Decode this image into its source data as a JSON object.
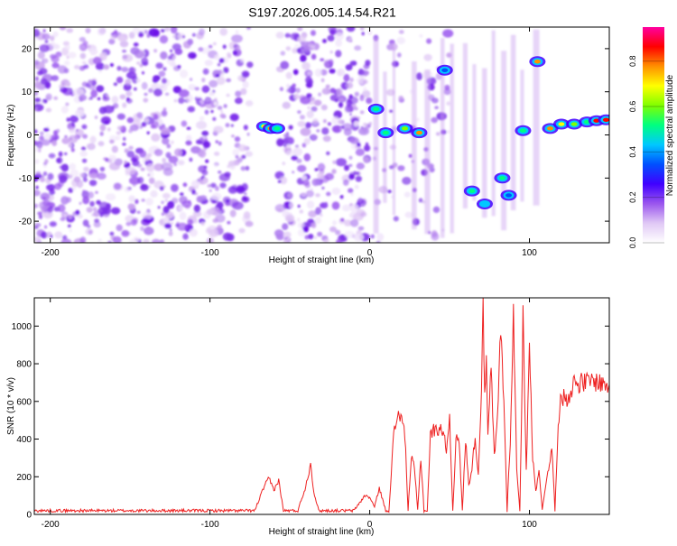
{
  "page": {
    "title": "S197.2026.005.14.54.R21"
  },
  "chart_data": [
    {
      "type": "heatmap",
      "xlabel": "Height of straight line (km)",
      "ylabel": "Frequency (Hz)",
      "xlim": [
        -210,
        150
      ],
      "ylim": [
        -25,
        25
      ],
      "xticks": [
        -200,
        -100,
        0,
        100
      ],
      "yticks": [
        -20,
        -10,
        0,
        10,
        20
      ],
      "colorbar": {
        "label": "Normalized spectral amplitude",
        "range": [
          0.0,
          0.95
        ],
        "ticks": [
          "0.0",
          "0.2",
          "0.4",
          "0.6",
          "0.8"
        ],
        "colors": [
          "#ffffff",
          "#e0c8f5",
          "#9a55ee",
          "#4000ff",
          "#0050ff",
          "#00c8ff",
          "#00ff80",
          "#80ff00",
          "#ffff00",
          "#ff9000",
          "#ff0000",
          "#ff00a0"
        ]
      },
      "noise_region_x": [
        -210,
        0
      ],
      "blank_region_x": [
        -75,
        -57
      ],
      "blank_region_x2": [
        0,
        150
      ],
      "ridges": [
        {
          "x": -66,
          "y": 2.0,
          "amp": 0.72
        },
        {
          "x": -62,
          "y": 1.5,
          "amp": 0.75
        },
        {
          "x": -58,
          "y": 1.5,
          "amp": 0.55
        },
        {
          "x": 4,
          "y": 6.0,
          "amp": 0.5
        },
        {
          "x": 10,
          "y": 0.5,
          "amp": 0.55
        },
        {
          "x": 22,
          "y": 1.5,
          "amp": 0.6
        },
        {
          "x": 31,
          "y": 0.5,
          "amp": 0.75
        },
        {
          "x": 47,
          "y": 15.0,
          "amp": 0.35
        },
        {
          "x": 64,
          "y": -13.0,
          "amp": 0.5
        },
        {
          "x": 72,
          "y": -16.0,
          "amp": 0.45
        },
        {
          "x": 83,
          "y": -10.0,
          "amp": 0.5
        },
        {
          "x": 87,
          "y": -14.0,
          "amp": 0.35
        },
        {
          "x": 96,
          "y": 1.0,
          "amp": 0.5
        },
        {
          "x": 105,
          "y": 17.0,
          "amp": 0.8
        },
        {
          "x": 113,
          "y": 1.5,
          "amp": 0.8
        },
        {
          "x": 120,
          "y": 2.5,
          "amp": 0.72
        },
        {
          "x": 128,
          "y": 2.5,
          "amp": 0.6
        },
        {
          "x": 136,
          "y": 3.0,
          "amp": 0.55
        },
        {
          "x": 142,
          "y": 3.3,
          "amp": 0.85
        },
        {
          "x": 148,
          "y": 3.5,
          "amp": 0.9
        }
      ]
    },
    {
      "type": "line",
      "xlabel": "Height of straight line (km)",
      "ylabel": "SNR (10 * v/v)",
      "xlim": [
        -210,
        150
      ],
      "ylim": [
        0,
        1150
      ],
      "xticks": [
        -200,
        -100,
        0,
        100
      ],
      "yticks": [
        0,
        200,
        400,
        600,
        800,
        1000
      ],
      "color": "#ee2020",
      "series": [
        {
          "x": [
            -210,
            -190,
            -170,
            -150,
            -130,
            -110,
            -90,
            -72,
            -66,
            -63,
            -60,
            -57,
            -54,
            -50,
            -45,
            -40,
            -37,
            -35,
            -32,
            -30,
            -20,
            -10,
            -3,
            0,
            3,
            6,
            10,
            12,
            15,
            18,
            20,
            22,
            24,
            26,
            28,
            30,
            32,
            34,
            36,
            38,
            40,
            42,
            44,
            46,
            48,
            50,
            52,
            54,
            56,
            58,
            60,
            62,
            64,
            66,
            68,
            70,
            71,
            72,
            73,
            74,
            76,
            78,
            80,
            82,
            84,
            86,
            88,
            90,
            92,
            94,
            96,
            98,
            100,
            102,
            104,
            106,
            108,
            110,
            112,
            114,
            116,
            118,
            120,
            124,
            128,
            132,
            136,
            140,
            144,
            148,
            150
          ],
          "y": [
            20,
            20,
            20,
            20,
            20,
            20,
            20,
            20,
            150,
            190,
            130,
            180,
            20,
            20,
            20,
            150,
            270,
            120,
            20,
            20,
            20,
            20,
            100,
            90,
            40,
            140,
            20,
            20,
            420,
            550,
            500,
            430,
            20,
            300,
            250,
            20,
            300,
            20,
            20,
            420,
            450,
            440,
            470,
            430,
            350,
            510,
            20,
            400,
            380,
            20,
            400,
            160,
            240,
            420,
            200,
            700,
            1150,
            600,
            850,
            400,
            780,
            300,
            500,
            1000,
            600,
            20,
            400,
            1060,
            250,
            20,
            1040,
            220,
            950,
            300,
            120,
            250,
            20,
            150,
            250,
            350,
            20,
            500,
            620,
            620,
            700,
            700,
            700,
            710,
            700,
            690,
            690
          ]
        }
      ]
    }
  ]
}
